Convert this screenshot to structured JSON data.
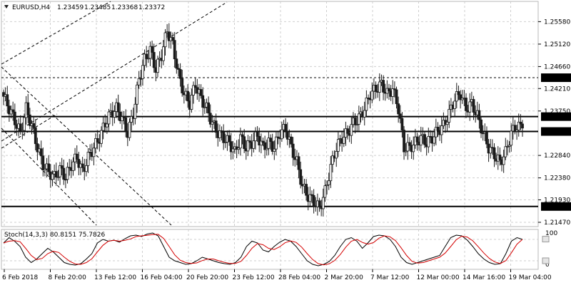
{
  "header": {
    "symbol": "EURUSD,H4",
    "open": "1.23459",
    "high": "1.23485",
    "low": "1.23368",
    "close": "1.23372"
  },
  "chart_data": {
    "type": "candlestick",
    "price_range": [
      1.2147,
      1.2579
    ],
    "price_ticks": [
      "1.25580",
      "1.25120",
      "1.24660",
      "1.24210",
      "1.23750",
      "1.22840",
      "1.22380",
      "1.21930",
      "1.21470"
    ],
    "levels": [
      {
        "price": 1.24432,
        "label": "1.24432",
        "style": "dashed"
      },
      {
        "price": 1.23635,
        "label": "1.23635",
        "style": "solid"
      },
      {
        "price": 1.2333,
        "label": "1.23330",
        "style": "solid"
      },
      {
        "price": 1.21794,
        "label": "1.21794",
        "style": "solid"
      }
    ],
    "x_labels": [
      "6 Feb 2018",
      "8 Feb 20:00",
      "13 Feb 12:00",
      "16 Feb 04:00",
      "20 Feb 20:00",
      "23 Feb 12:00",
      "28 Feb 04:00",
      "2 Mar 20:00",
      "7 Mar 12:00",
      "12 Mar 00:00",
      "14 Mar 16:00",
      "19 Mar 04:00"
    ],
    "close_path": [
      1.2405,
      1.238,
      1.2355,
      1.233,
      1.238,
      1.2345,
      1.23,
      1.2265,
      1.225,
      1.224,
      1.2255,
      1.224,
      1.2265,
      1.228,
      1.225,
      1.228,
      1.23,
      1.232,
      1.235,
      1.237,
      1.238,
      1.236,
      1.233,
      1.237,
      1.244,
      1.248,
      1.25,
      1.246,
      1.249,
      1.254,
      1.251,
      1.245,
      1.241,
      1.239,
      1.243,
      1.24,
      1.238,
      1.235,
      1.233,
      1.232,
      1.231,
      1.229,
      1.232,
      1.23,
      1.231,
      1.2325,
      1.23,
      1.231,
      1.23,
      1.233,
      1.234,
      1.23,
      1.227,
      1.222,
      1.22,
      1.219,
      1.2175,
      1.221,
      1.226,
      1.23,
      1.232,
      1.233,
      1.235,
      1.236,
      1.238,
      1.241,
      1.242,
      1.243,
      1.241,
      1.242,
      1.238,
      1.23,
      1.23,
      1.231,
      1.232,
      1.231,
      1.232,
      1.2335,
      1.2345,
      1.237,
      1.24,
      1.241,
      1.238,
      1.239,
      1.2365,
      1.233,
      1.23,
      1.2285,
      1.227,
      1.229,
      1.233,
      1.2345,
      1.234
    ],
    "stochastic": {
      "label": "Stoch(14,3,3) 80.8151 75.7826",
      "main": 80.8151,
      "signal": 75.7826,
      "range": [
        0,
        100
      ],
      "ticks": [
        "100",
        "0"
      ],
      "k_path": [
        70,
        85,
        75,
        60,
        30,
        15,
        25,
        40,
        55,
        45,
        30,
        15,
        10,
        8,
        12,
        25,
        40,
        70,
        80,
        75,
        78,
        72,
        82,
        90,
        92,
        88,
        95,
        98,
        90,
        60,
        30,
        20,
        15,
        10,
        12,
        20,
        30,
        25,
        20,
        15,
        12,
        10,
        15,
        30,
        60,
        75,
        70,
        50,
        45,
        60,
        72,
        80,
        75,
        60,
        40,
        20,
        10,
        6,
        10,
        18,
        35,
        60,
        80,
        85,
        75,
        55,
        70,
        88,
        92,
        90,
        80,
        60,
        30,
        15,
        10,
        15,
        20,
        25,
        30,
        35,
        60,
        85,
        92,
        90,
        78,
        60,
        40,
        25,
        15,
        10,
        12,
        40,
        75,
        85,
        80
      ]
    },
    "trend_channel": "ascending-dashed",
    "overlay_lines": "descending-dashed"
  }
}
